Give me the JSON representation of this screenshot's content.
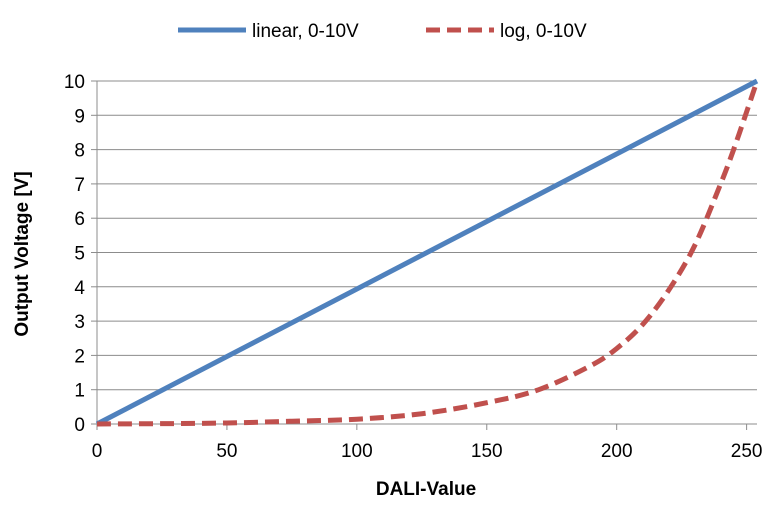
{
  "chart_data": {
    "type": "line",
    "title": "",
    "xlabel": "DALI-Value",
    "ylabel": "Output Voltage [V]",
    "xlim": [
      0,
      254
    ],
    "ylim": [
      0,
      10
    ],
    "x_ticks": [
      "0",
      "50",
      "100",
      "150",
      "200",
      "250"
    ],
    "y_ticks": [
      "0",
      "1",
      "2",
      "3",
      "4",
      "5",
      "6",
      "7",
      "8",
      "9",
      "10"
    ],
    "grid": "horizontal",
    "legend_position": "top",
    "series": [
      {
        "name": "linear, 0-10V",
        "color": "#4f81bd",
        "style": "solid",
        "x": [
          0,
          254
        ],
        "y": [
          0,
          10
        ]
      },
      {
        "name": "log, 0-10V",
        "color": "#c0504d",
        "style": "dashed",
        "x": [
          0,
          25,
          50,
          75,
          100,
          125,
          150,
          170,
          190,
          200,
          210,
          220,
          230,
          240,
          245,
          250,
          254
        ],
        "y": [
          0,
          0.01,
          0.03,
          0.08,
          0.14,
          0.3,
          0.62,
          1.0,
          1.7,
          2.2,
          2.9,
          3.9,
          5.2,
          7.0,
          8.0,
          9.1,
          10
        ]
      }
    ]
  }
}
